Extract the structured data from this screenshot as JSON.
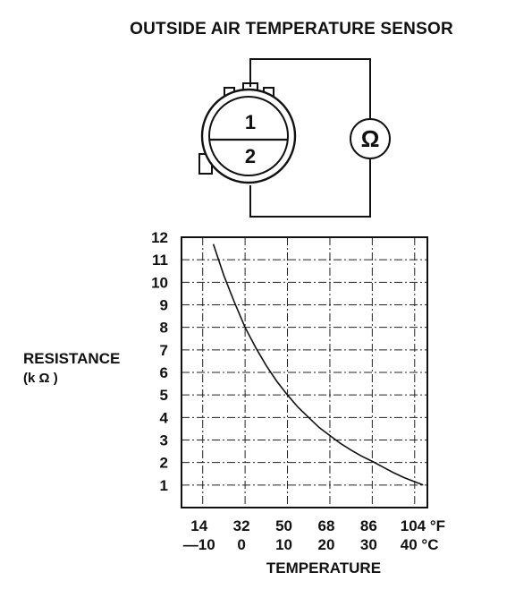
{
  "title": "OUTSIDE AIR TEMPERATURE SENSOR",
  "connector": {
    "pin_top": "1",
    "pin_bottom": "2"
  },
  "meter_symbol": "Ω",
  "chart_data": {
    "type": "line",
    "ylabel": "RESISTANCE",
    "ylabel_unit": "(k Ω )",
    "xlabel": "TEMPERATURE",
    "x_ticks_f": [
      "14",
      "32",
      "50",
      "68",
      "86",
      "104 °F"
    ],
    "x_ticks_c": [
      "—10",
      "0",
      "10",
      "20",
      "30",
      "40 °C"
    ],
    "x_ticks_c_values": [
      -10,
      0,
      10,
      20,
      30,
      40
    ],
    "y_ticks": [
      "12",
      "11",
      "10",
      "9",
      "8",
      "7",
      "6",
      "5",
      "4",
      "3",
      "2",
      "1"
    ],
    "y_ticks_values": [
      12,
      11,
      10,
      9,
      8,
      7,
      6,
      5,
      4,
      3,
      2,
      1
    ],
    "xlim_c": [
      -15,
      43
    ],
    "ylim": [
      0,
      12
    ],
    "grid": true,
    "series": [
      {
        "x_c": [
          -7.5,
          -5,
          -2.5,
          0,
          2.5,
          5,
          7.5,
          10,
          12.5,
          15,
          17.5,
          20,
          22.5,
          25,
          27.5,
          30,
          32.5,
          35,
          37.5,
          40,
          42
        ],
        "values": [
          11.7,
          10.3,
          9.1,
          8.0,
          7.1,
          6.3,
          5.6,
          5.0,
          4.45,
          4.0,
          3.55,
          3.2,
          2.85,
          2.55,
          2.28,
          2.05,
          1.8,
          1.55,
          1.33,
          1.15,
          1.0
        ]
      }
    ]
  }
}
